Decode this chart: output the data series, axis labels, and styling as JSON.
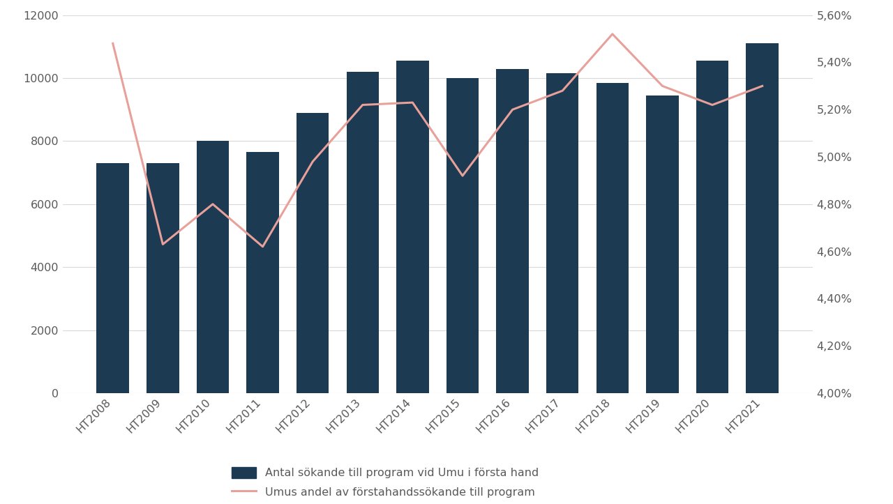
{
  "categories": [
    "HT2008",
    "HT2009",
    "HT2010",
    "HT2011",
    "HT2012",
    "HT2013",
    "HT2014",
    "HT2015",
    "HT2016",
    "HT2017",
    "HT2018",
    "HT2019",
    "HT2020",
    "HT2021"
  ],
  "bar_values": [
    7300,
    7300,
    8000,
    7650,
    8900,
    10200,
    10550,
    10000,
    10300,
    10150,
    9850,
    9450,
    10550,
    11100
  ],
  "line_values": [
    0.0548,
    0.0463,
    0.048,
    0.0462,
    0.0498,
    0.0522,
    0.0523,
    0.0492,
    0.052,
    0.0528,
    0.0552,
    0.053,
    0.0522,
    0.053
  ],
  "bar_color": "#1C3A52",
  "line_color": "#E8A09A",
  "bar_label": "Antal sökande till program vid Umu i första hand",
  "line_label": "Umus andel av förstahandssökande till program",
  "left_ylim": [
    0,
    12000
  ],
  "left_yticks": [
    0,
    2000,
    4000,
    6000,
    8000,
    10000,
    12000
  ],
  "right_ylim": [
    0.04,
    0.056
  ],
  "right_yticks": [
    0.04,
    0.042,
    0.044,
    0.046,
    0.048,
    0.05,
    0.052,
    0.054,
    0.056
  ],
  "background_color": "#FFFFFF",
  "grid_color": "#D9D9D9",
  "tick_label_color": "#595959",
  "legend_fontsize": 11.5,
  "tick_fontsize": 11.5
}
